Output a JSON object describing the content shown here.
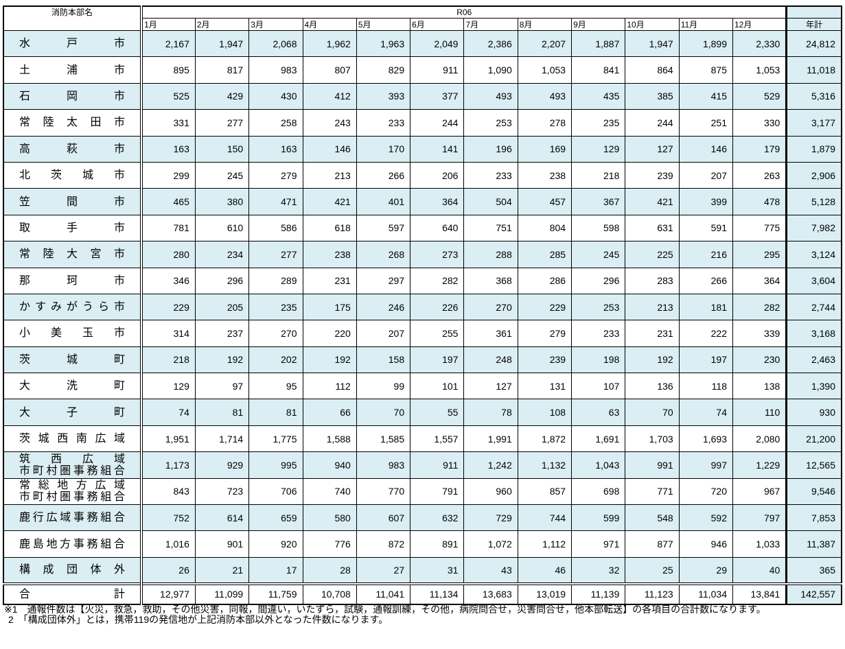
{
  "table": {
    "header": {
      "name": "消防本部名",
      "period": "R06",
      "months": [
        "1月",
        "2月",
        "3月",
        "4月",
        "5月",
        "6月",
        "7月",
        "8月",
        "9月",
        "10月",
        "11月",
        "12月"
      ],
      "total": "年計"
    },
    "rows": [
      {
        "name": [
          "水戸市"
        ],
        "values": [
          "2,167",
          "1,947",
          "2,068",
          "1,962",
          "1,963",
          "2,049",
          "2,386",
          "2,207",
          "1,887",
          "1,947",
          "1,899",
          "2,330",
          "24,812"
        ]
      },
      {
        "name": [
          "土浦市"
        ],
        "values": [
          "895",
          "817",
          "983",
          "807",
          "829",
          "911",
          "1,090",
          "1,053",
          "841",
          "864",
          "875",
          "1,053",
          "11,018"
        ]
      },
      {
        "name": [
          "石岡市"
        ],
        "values": [
          "525",
          "429",
          "430",
          "412",
          "393",
          "377",
          "493",
          "493",
          "435",
          "385",
          "415",
          "529",
          "5,316"
        ]
      },
      {
        "name": [
          "常陸太田市"
        ],
        "values": [
          "331",
          "277",
          "258",
          "243",
          "233",
          "244",
          "253",
          "278",
          "235",
          "244",
          "251",
          "330",
          "3,177"
        ]
      },
      {
        "name": [
          "高萩市"
        ],
        "values": [
          "163",
          "150",
          "163",
          "146",
          "170",
          "141",
          "196",
          "169",
          "129",
          "127",
          "146",
          "179",
          "1,879"
        ]
      },
      {
        "name": [
          "北茨城市"
        ],
        "values": [
          "299",
          "245",
          "279",
          "213",
          "266",
          "206",
          "233",
          "238",
          "218",
          "239",
          "207",
          "263",
          "2,906"
        ]
      },
      {
        "name": [
          "笠間市"
        ],
        "values": [
          "465",
          "380",
          "471",
          "421",
          "401",
          "364",
          "504",
          "457",
          "367",
          "421",
          "399",
          "478",
          "5,128"
        ]
      },
      {
        "name": [
          "取手市"
        ],
        "values": [
          "781",
          "610",
          "586",
          "618",
          "597",
          "640",
          "751",
          "804",
          "598",
          "631",
          "591",
          "775",
          "7,982"
        ]
      },
      {
        "name": [
          "常陸大宮市"
        ],
        "values": [
          "280",
          "234",
          "277",
          "238",
          "268",
          "273",
          "288",
          "285",
          "245",
          "225",
          "216",
          "295",
          "3,124"
        ]
      },
      {
        "name": [
          "那珂市"
        ],
        "values": [
          "346",
          "296",
          "289",
          "231",
          "297",
          "282",
          "368",
          "286",
          "296",
          "283",
          "266",
          "364",
          "3,604"
        ]
      },
      {
        "name": [
          "かすみがうら市"
        ],
        "values": [
          "229",
          "205",
          "235",
          "175",
          "246",
          "226",
          "270",
          "229",
          "253",
          "213",
          "181",
          "282",
          "2,744"
        ]
      },
      {
        "name": [
          "小美玉市"
        ],
        "values": [
          "314",
          "237",
          "270",
          "220",
          "207",
          "255",
          "361",
          "279",
          "233",
          "231",
          "222",
          "339",
          "3,168"
        ]
      },
      {
        "name": [
          "茨城町"
        ],
        "values": [
          "218",
          "192",
          "202",
          "192",
          "158",
          "197",
          "248",
          "239",
          "198",
          "192",
          "197",
          "230",
          "2,463"
        ]
      },
      {
        "name": [
          "大洗町"
        ],
        "values": [
          "129",
          "97",
          "95",
          "112",
          "99",
          "101",
          "127",
          "131",
          "107",
          "136",
          "118",
          "138",
          "1,390"
        ]
      },
      {
        "name": [
          "大子町"
        ],
        "values": [
          "74",
          "81",
          "81",
          "66",
          "70",
          "55",
          "78",
          "108",
          "63",
          "70",
          "74",
          "110",
          "930"
        ]
      },
      {
        "name": [
          "茨城西南広域"
        ],
        "values": [
          "1,951",
          "1,714",
          "1,775",
          "1,588",
          "1,585",
          "1,557",
          "1,991",
          "1,872",
          "1,691",
          "1,703",
          "1,693",
          "2,080",
          "21,200"
        ]
      },
      {
        "name": [
          "筑西広域",
          "市町村圏事務組合"
        ],
        "values": [
          "1,173",
          "929",
          "995",
          "940",
          "983",
          "911",
          "1,242",
          "1,132",
          "1,043",
          "991",
          "997",
          "1,229",
          "12,565"
        ]
      },
      {
        "name": [
          "常総地方広域",
          "市町村圏事務組合"
        ],
        "values": [
          "843",
          "723",
          "706",
          "740",
          "770",
          "791",
          "960",
          "857",
          "698",
          "771",
          "720",
          "967",
          "9,546"
        ]
      },
      {
        "name": [
          "鹿行広域事務組合"
        ],
        "values": [
          "752",
          "614",
          "659",
          "580",
          "607",
          "632",
          "729",
          "744",
          "599",
          "548",
          "592",
          "797",
          "7,853"
        ]
      },
      {
        "name": [
          "鹿島地方事務組合"
        ],
        "values": [
          "1,016",
          "901",
          "920",
          "776",
          "872",
          "891",
          "1,072",
          "1,112",
          "971",
          "877",
          "946",
          "1,033",
          "11,387"
        ]
      },
      {
        "name": [
          "構成団体外"
        ],
        "values": [
          "26",
          "21",
          "17",
          "28",
          "27",
          "31",
          "43",
          "46",
          "32",
          "25",
          "29",
          "40",
          "365"
        ]
      }
    ],
    "total_row": {
      "name": "合計",
      "values": [
        "12,977",
        "11,099",
        "11,759",
        "10,708",
        "11,041",
        "11,134",
        "13,683",
        "13,019",
        "11,139",
        "11,123",
        "11,034",
        "13,841",
        "142,557"
      ]
    },
    "notes": [
      "※1　通報件数は【火災，救急，救助，その他災害，同報，間違い，いたずら，試験，通報訓練，その他，病院問合せ，災害問合せ，他本部転送】の各項目の合計数になります。",
      "2　「構成団体外」とは，携帯119の発信地が上記消防本部以外となった件数になります。"
    ]
  }
}
